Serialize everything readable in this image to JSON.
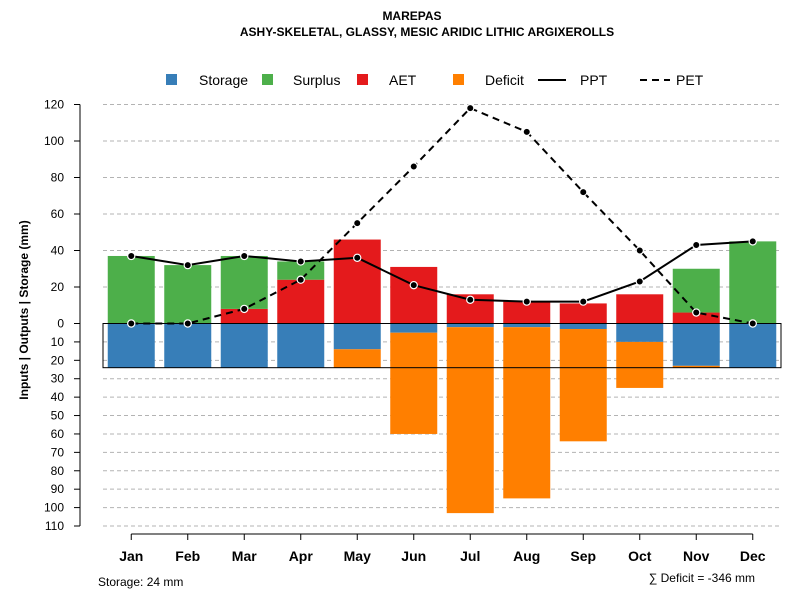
{
  "chart_data": {
    "type": "bar",
    "title": "MAREPAS",
    "subtitle": "ASHY-SKELETAL, GLASSY, MESIC ARIDIC LITHIC ARGIXEROLLS",
    "ylabel": "Inputs | Outputs | Storage    (mm)",
    "categories": [
      "Jan",
      "Feb",
      "Mar",
      "Apr",
      "May",
      "Jun",
      "Jul",
      "Aug",
      "Sep",
      "Oct",
      "Nov",
      "Dec"
    ],
    "upper_ticks": [
      "0",
      "20",
      "40",
      "60",
      "80",
      "100",
      "120"
    ],
    "lower_ticks": [
      "10",
      "20",
      "30",
      "40",
      "50",
      "60",
      "70",
      "80",
      "90",
      "100",
      "110"
    ],
    "ylim_upper": [
      0,
      120
    ],
    "ylim_lower": [
      0,
      110
    ],
    "series": [
      {
        "name": "Storage",
        "color": "#377eb8",
        "values": [
          24,
          24,
          24,
          24,
          14,
          5,
          2,
          2,
          3,
          10,
          23,
          24
        ]
      },
      {
        "name": "Surplus",
        "color": "#4daf4a",
        "values": [
          37,
          32,
          29,
          10,
          0,
          0,
          0,
          0,
          0,
          0,
          24,
          45
        ]
      },
      {
        "name": "AET",
        "color": "#e41a1c",
        "values": [
          0,
          0,
          8,
          24,
          46,
          31,
          16,
          12,
          11,
          16,
          6,
          0
        ]
      },
      {
        "name": "Deficit",
        "color": "#ff7f00",
        "values": [
          0,
          0,
          0,
          0,
          10,
          55,
          101,
          93,
          61,
          25,
          1,
          0
        ]
      },
      {
        "name": "PPT",
        "color": "#000000",
        "line": "solid",
        "values": [
          37,
          32,
          37,
          34,
          36,
          21,
          13,
          12,
          12,
          23,
          43,
          45
        ]
      },
      {
        "name": "PET",
        "color": "#000000",
        "line": "dashed",
        "values": [
          0,
          0,
          8,
          24,
          55,
          86,
          118,
          105,
          72,
          40,
          6,
          0
        ]
      }
    ],
    "storage_capacity": 24,
    "footer_storage": "Storage: 24 mm",
    "footer_deficit": "∑ Deficit = -346 mm",
    "legend_position": "top",
    "grid": true
  }
}
